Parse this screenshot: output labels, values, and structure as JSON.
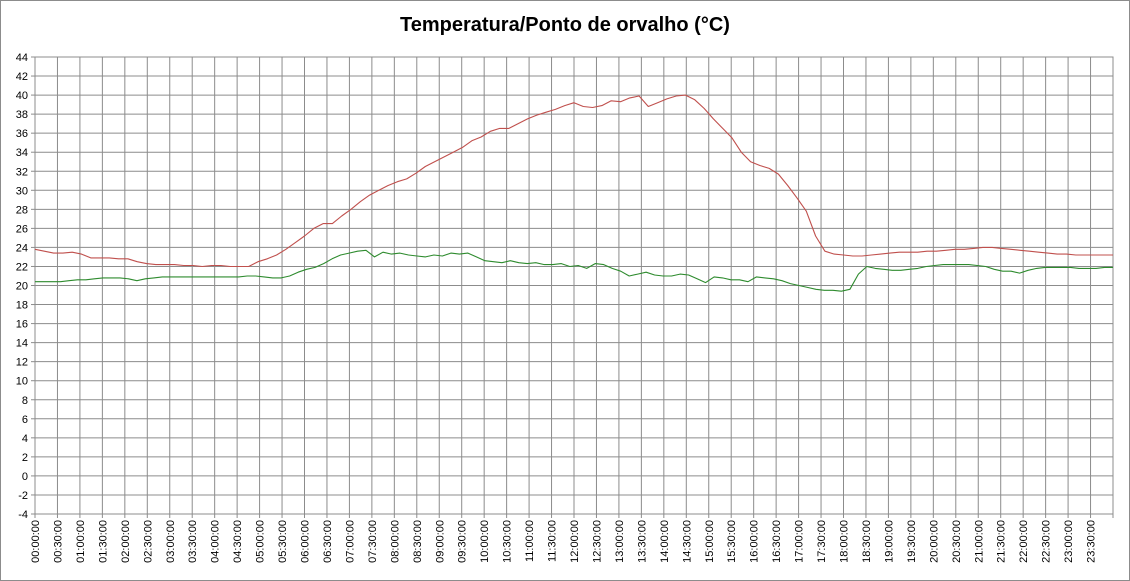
{
  "chart_data": {
    "type": "line",
    "title": "Temperatura/Ponto de orvalho (°C)",
    "xlabel": "",
    "ylabel": "",
    "ylim": [
      -4,
      44
    ],
    "y_tick_step": 2,
    "grid": true,
    "x_ticks": [
      "00:00:00",
      "00:30:00",
      "01:00:00",
      "01:30:00",
      "02:00:00",
      "02:30:00",
      "03:00:00",
      "03:30:00",
      "04:00:00",
      "04:30:00",
      "05:00:00",
      "05:30:00",
      "06:00:00",
      "06:30:00",
      "07:00:00",
      "07:30:00",
      "08:00:00",
      "08:30:00",
      "09:00:00",
      "09:30:00",
      "10:00:00",
      "10:30:00",
      "11:00:00",
      "11:30:00",
      "12:00:00",
      "12:30:00",
      "13:00:00",
      "13:30:00",
      "14:00:00",
      "14:30:00",
      "15:00:00",
      "15:30:00",
      "16:00:00",
      "16:30:00",
      "17:00:00",
      "17:30:00",
      "18:00:00",
      "18:30:00",
      "19:00:00",
      "19:30:00",
      "20:00:00",
      "20:30:00",
      "21:00:00",
      "21:30:00",
      "22:00:00",
      "22:30:00",
      "23:00:00",
      "23:30:00"
    ],
    "series": [
      {
        "color": "#c0504d",
        "values": [
          23.8,
          23.6,
          23.4,
          23.4,
          23.5,
          23.3,
          22.9,
          22.9,
          22.9,
          22.8,
          22.8,
          22.5,
          22.3,
          22.2,
          22.2,
          22.2,
          22.1,
          22.1,
          22.0,
          22.1,
          22.1,
          22.0,
          22.0,
          22.0,
          22.5,
          22.8,
          23.2,
          23.8,
          24.5,
          25.2,
          26.0,
          26.5,
          26.5,
          27.3,
          28.0,
          28.8,
          29.5,
          30.0,
          30.5,
          30.9,
          31.2,
          31.8,
          32.5,
          33.0,
          33.5,
          34.0,
          34.5,
          35.2,
          35.6,
          36.2,
          36.5,
          36.5,
          37.0,
          37.5,
          37.9,
          38.2,
          38.5,
          38.9,
          39.2,
          38.8,
          38.7,
          38.9,
          39.4,
          39.3,
          39.7,
          39.9,
          38.8,
          39.2,
          39.6,
          39.9,
          40.0,
          39.5,
          38.6,
          37.5,
          36.5,
          35.5,
          34.0,
          33.0,
          32.6,
          32.3,
          31.7,
          30.5,
          29.2,
          27.8,
          25.2,
          23.6,
          23.3,
          23.2,
          23.1,
          23.1,
          23.2,
          23.3,
          23.4,
          23.5,
          23.5,
          23.5,
          23.6,
          23.6,
          23.7,
          23.8,
          23.8,
          23.9,
          24.0,
          24.0,
          23.9,
          23.8,
          23.7,
          23.6,
          23.5,
          23.4,
          23.3,
          23.3,
          23.2,
          23.2,
          23.2,
          23.2,
          23.2
        ]
      },
      {
        "color": "#2e8b2e",
        "values": [
          20.4,
          20.4,
          20.4,
          20.4,
          20.5,
          20.6,
          20.6,
          20.7,
          20.8,
          20.8,
          20.8,
          20.7,
          20.5,
          20.7,
          20.8,
          20.9,
          20.9,
          20.9,
          20.9,
          20.9,
          20.9,
          20.9,
          20.9,
          20.9,
          20.9,
          21.0,
          21.0,
          20.9,
          20.8,
          20.8,
          21.0,
          21.4,
          21.7,
          21.9,
          22.3,
          22.8,
          23.2,
          23.4,
          23.6,
          23.7,
          23.0,
          23.5,
          23.3,
          23.4,
          23.2,
          23.1,
          23.0,
          23.2,
          23.1,
          23.4,
          23.3,
          23.4,
          23.0,
          22.6,
          22.5,
          22.4,
          22.6,
          22.4,
          22.3,
          22.4,
          22.2,
          22.2,
          22.3,
          22.0,
          22.1,
          21.8,
          22.3,
          22.2,
          21.8,
          21.5,
          21.0,
          21.2,
          21.4,
          21.1,
          21.0,
          21.0,
          21.2,
          21.1,
          20.7,
          20.3,
          20.9,
          20.8,
          20.6,
          20.6,
          20.4,
          20.9,
          20.8,
          20.7,
          20.5,
          20.2,
          20.0,
          19.8,
          19.6,
          19.5,
          19.5,
          19.4,
          19.6,
          21.2,
          22.0,
          21.8,
          21.7,
          21.6,
          21.6,
          21.7,
          21.8,
          22.0,
          22.1,
          22.2,
          22.2,
          22.2,
          22.2,
          22.1,
          22.0,
          21.7,
          21.5,
          21.5,
          21.3,
          21.6,
          21.8,
          21.9,
          21.9,
          21.9,
          21.9,
          21.8,
          21.8,
          21.8,
          21.9,
          21.9
        ]
      }
    ]
  }
}
